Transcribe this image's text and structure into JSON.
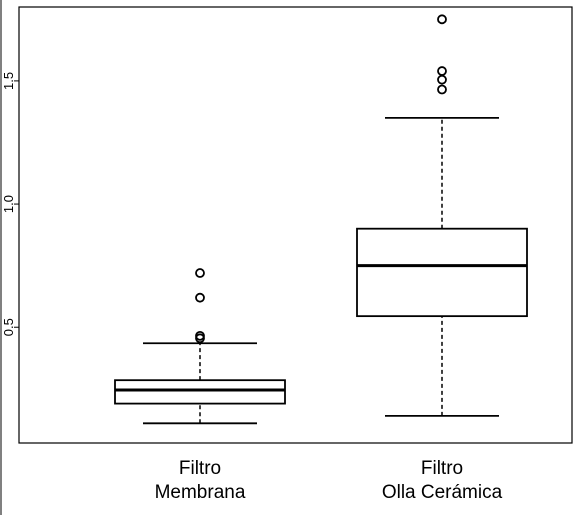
{
  "chart_data": {
    "type": "boxplot",
    "title": "",
    "xlabel": "",
    "ylabel": "",
    "ylim": [
      0.03,
      1.8
    ],
    "yticks": [
      {
        "value": 0.5,
        "label": "0.5"
      },
      {
        "value": 1.0,
        "label": "1.0"
      },
      {
        "value": 1.5,
        "label": "1.5"
      }
    ],
    "grid": false,
    "legend": "none",
    "categories": [
      {
        "label_lines": [
          "Filtro",
          "Membrana"
        ],
        "whisker_low": 0.11,
        "q1": 0.19,
        "median": 0.245,
        "q3": 0.285,
        "whisker_high": 0.435,
        "outliers": [
          0.455,
          0.465,
          0.62,
          0.72
        ]
      },
      {
        "label_lines": [
          "Filtro",
          "Olla Cerámica"
        ],
        "whisker_low": 0.14,
        "q1": 0.545,
        "median": 0.75,
        "q3": 0.9,
        "whisker_high": 1.35,
        "outliers": [
          1.465,
          1.505,
          1.54,
          1.75
        ]
      }
    ]
  }
}
